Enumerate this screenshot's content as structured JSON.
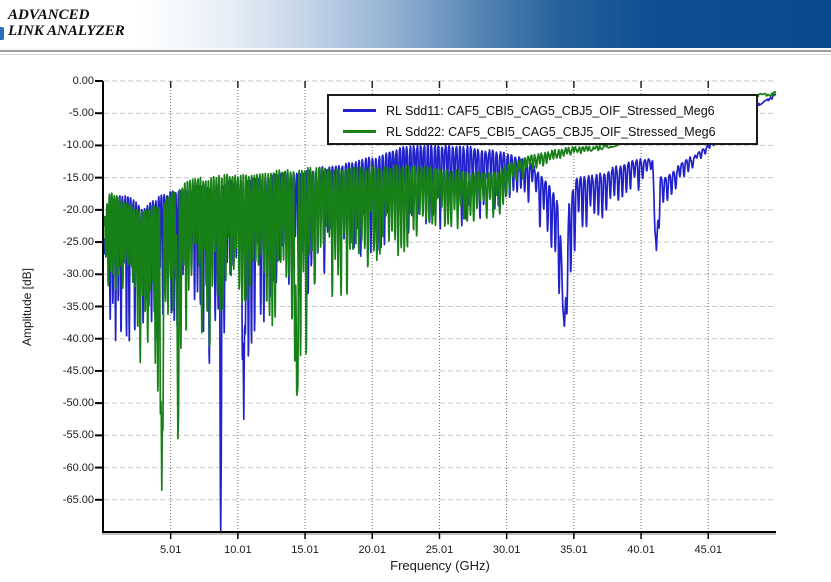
{
  "header": {
    "line1": "ADVANCED",
    "line2": "LINK ANALYZER"
  },
  "colors": {
    "header_dark_blue": "#084a8c",
    "axis": "#000000",
    "h_grid": "#c9c9c9",
    "v_grid": "#6e6e6e",
    "series_blue": "#2222cc",
    "series_green": "#178017"
  },
  "chart_data": {
    "type": "line",
    "title": "",
    "xlabel": "Frequency (GHz)",
    "ylabel": "Amplitude [dB]",
    "x_range": [
      0.05,
      50.05
    ],
    "y_range": [
      -70,
      0
    ],
    "x_ticks": [
      5.01,
      10.01,
      15.01,
      20.01,
      25.01,
      30.01,
      35.01,
      40.01,
      45.01
    ],
    "y_ticks": [
      0,
      -5,
      -10,
      -15,
      -20,
      -25,
      -30,
      -35,
      -40,
      -45,
      -50,
      -55,
      -60,
      -65
    ],
    "grid": true,
    "legend_position": "top-center",
    "sample_step_GHz": 0.02,
    "series": [
      {
        "name": "RL Sdd11: CAF5_CBI5_CAG5_CBJ5_OIF_Stressed_Meg6",
        "color": "#2222cc",
        "ripple": {
          "period_start": 0.4,
          "period_end": 0.66,
          "sharpness": 4,
          "seed": 7,
          "min_dip_fraction": 0.38
        },
        "envelope": [
          [
            0.05,
            -24,
            -30
          ],
          [
            0.5,
            -18,
            -38
          ],
          [
            1.0,
            -17.5,
            -45
          ],
          [
            2.0,
            -18,
            -41
          ],
          [
            3.0,
            -19.5,
            -39
          ],
          [
            4.0,
            -18,
            -40
          ],
          [
            5.0,
            -17,
            -42
          ],
          [
            6.0,
            -16.5,
            -40
          ],
          [
            7.0,
            -16.2,
            -42
          ],
          [
            8.5,
            -16,
            -48
          ],
          [
            9.5,
            -15.3,
            -42
          ],
          [
            10.5,
            -15,
            -50
          ],
          [
            11.5,
            -14.8,
            -40
          ],
          [
            13,
            -14.3,
            -35
          ],
          [
            15,
            -13.8,
            -34
          ],
          [
            17,
            -13,
            -31
          ],
          [
            19,
            -12.3,
            -28
          ],
          [
            21,
            -11,
            -26
          ],
          [
            23,
            -9.8,
            -24
          ],
          [
            25,
            -9.8,
            -25
          ],
          [
            27,
            -10,
            -22
          ],
          [
            29,
            -10.6,
            -21
          ],
          [
            30.5,
            -11.3,
            -18.5
          ],
          [
            32,
            -13,
            -20
          ],
          [
            33.2,
            -16,
            -27
          ],
          [
            34.3,
            -21,
            -38.5
          ],
          [
            35.2,
            -14.8,
            -25
          ],
          [
            36.5,
            -14.5,
            -23.5
          ],
          [
            38,
            -13.3,
            -20
          ],
          [
            39.5,
            -12.2,
            -17.5
          ],
          [
            40.8,
            -11.4,
            -15.5
          ],
          [
            41.15,
            -13,
            -26.3
          ],
          [
            41.6,
            -15,
            -20.5
          ],
          [
            42.5,
            -13.5,
            -17.5
          ],
          [
            43.5,
            -12,
            -14.5
          ],
          [
            44.5,
            -10.3,
            -12
          ],
          [
            45.5,
            -8.8,
            -10
          ],
          [
            46.5,
            -7.2,
            -8.2
          ],
          [
            47.5,
            -5.6,
            -6.4
          ],
          [
            48.5,
            -3.8,
            -4.4
          ],
          [
            49.3,
            -2.6,
            -3.0
          ],
          [
            50.05,
            -1.9,
            -2.1
          ]
        ],
        "deep_dips": [
          [
            8.73,
            -74,
            0.1
          ],
          [
            10.45,
            -52.5,
            0.14
          ],
          [
            34.3,
            -38.5,
            0.35
          ],
          [
            41.15,
            -26.3,
            0.28
          ]
        ]
      },
      {
        "name": "RL Sdd22: CAF5_CBI5_CAG5_CBJ5_OIF_Stressed_Meg6",
        "color": "#178017",
        "ripple": {
          "period_start": 0.36,
          "period_end": 0.58,
          "sharpness": 3,
          "seed": 13,
          "min_dip_fraction": 0.42
        },
        "envelope": [
          [
            0.05,
            -21,
            -27
          ],
          [
            0.4,
            -17.2,
            -33
          ],
          [
            1.0,
            -17.5,
            -40
          ],
          [
            1.8,
            -18.5,
            -38
          ],
          [
            2.6,
            -20,
            -44
          ],
          [
            3.5,
            -19.5,
            -45
          ],
          [
            4.35,
            -19,
            -56
          ],
          [
            5.0,
            -17,
            -44
          ],
          [
            5.55,
            -16.5,
            -50
          ],
          [
            6.2,
            -15.5,
            -43
          ],
          [
            7.0,
            -15,
            -38
          ],
          [
            8.0,
            -14.8,
            -43
          ],
          [
            9.0,
            -14.5,
            -36
          ],
          [
            10,
            -14.3,
            -38
          ],
          [
            11,
            -14.2,
            -34
          ],
          [
            12.5,
            -14,
            -41
          ],
          [
            13.8,
            -13.6,
            -37
          ],
          [
            14.4,
            -13.5,
            -46
          ],
          [
            15.3,
            -13.4,
            -43
          ],
          [
            16.5,
            -13.3,
            -34
          ],
          [
            17.5,
            -13.4,
            -37
          ],
          [
            18.5,
            -13.4,
            -33
          ],
          [
            20,
            -13.2,
            -30
          ],
          [
            21.5,
            -13,
            -28
          ],
          [
            23,
            -13,
            -26
          ],
          [
            24.5,
            -13.3,
            -24.5
          ],
          [
            26,
            -13.6,
            -23.5
          ],
          [
            27.5,
            -13.8,
            -22
          ],
          [
            29,
            -14,
            -23.5
          ],
          [
            30,
            -13,
            -18
          ],
          [
            31,
            -12,
            -16
          ],
          [
            32,
            -11.3,
            -14.2
          ],
          [
            33,
            -10.8,
            -13
          ],
          [
            34,
            -10.4,
            -12
          ],
          [
            35,
            -10.2,
            -11.4
          ],
          [
            36.5,
            -10.1,
            -11
          ],
          [
            38,
            -9.5,
            -10.2
          ],
          [
            40,
            -8.2,
            -8.8
          ],
          [
            42,
            -6.5,
            -7.0
          ],
          [
            44,
            -4.8,
            -5.2
          ],
          [
            46,
            -3.2,
            -3.5
          ],
          [
            47.5,
            -2.1,
            -2.4
          ],
          [
            48.5,
            -1.8,
            -2.0
          ],
          [
            50.05,
            -1.6,
            -1.8
          ]
        ],
        "deep_dips": [
          [
            4.35,
            -63.5,
            0.14
          ],
          [
            5.55,
            -55.5,
            0.12
          ],
          [
            14.4,
            -50.5,
            0.14
          ]
        ]
      }
    ]
  }
}
